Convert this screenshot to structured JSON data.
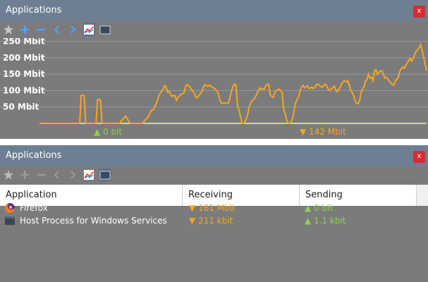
{
  "top_panel": {
    "title": "Applications",
    "close_label": "x",
    "chart_data": {
      "type": "line",
      "ylabels": [
        "250 Mbit",
        "200 Mbit",
        "150 Mbit",
        "100 Mbit",
        "50 Mbit"
      ],
      "yticks": [
        250,
        200,
        150,
        100,
        50
      ],
      "ylim": [
        0,
        260
      ],
      "grid": true,
      "series": [
        {
          "color": "#f5a623",
          "values": [
            0,
            0,
            0,
            0,
            0,
            0,
            0,
            0,
            0,
            0,
            0,
            0,
            0,
            0,
            0,
            0,
            0,
            0,
            0,
            0,
            0,
            0,
            0,
            0,
            0,
            0,
            0,
            0,
            85,
            85,
            85,
            0,
            0,
            0,
            0,
            0,
            0,
            0,
            0,
            72,
            74,
            70,
            0,
            0,
            0,
            0,
            0,
            0,
            0,
            0,
            0,
            0,
            0,
            0,
            0,
            8,
            12,
            18,
            22,
            14,
            6,
            0,
            0,
            0,
            0,
            0,
            0,
            0,
            0,
            0,
            5,
            10,
            14,
            20,
            30,
            40,
            40,
            45,
            58,
            65,
            82,
            90,
            98,
            104,
            115,
            112,
            95,
            98,
            90,
            82,
            85,
            85,
            70,
            80,
            84,
            88,
            90,
            92,
            110,
            118,
            116,
            110,
            104,
            98,
            92,
            80,
            78,
            85,
            90,
            96,
            110,
            118,
            116,
            112,
            116,
            114,
            110,
            108,
            104,
            100,
            92,
            74,
            62,
            62,
            62,
            62,
            62,
            62,
            80,
            100,
            112,
            120,
            116,
            54,
            40,
            20,
            0,
            0,
            5,
            15,
            30,
            52,
            62,
            70,
            73,
            80,
            90,
            98,
            108,
            104,
            106,
            104,
            115,
            120,
            118,
            86,
            82,
            80,
            94,
            100,
            102,
            104,
            100,
            92,
            42,
            30,
            10,
            0,
            0,
            5,
            15,
            40,
            62,
            74,
            80,
            100,
            110,
            116,
            108,
            112,
            114,
            106,
            108,
            110,
            106,
            110,
            118,
            120,
            115,
            112,
            110,
            116,
            120,
            115,
            104,
            100,
            106,
            108,
            114,
            102,
            96,
            104,
            110,
            120,
            128,
            130,
            126,
            130,
            118,
            100,
            95,
            85,
            70,
            60,
            60,
            70,
            94,
            106,
            112,
            130,
            134,
            150,
            138,
            140,
            130,
            160,
            164,
            150,
            155,
            160,
            160,
            150,
            138,
            140,
            136,
            128,
            124,
            118,
            116,
            130,
            134,
            140,
            158,
            166,
            172,
            168,
            176,
            184,
            192,
            198,
            190,
            198,
            210,
            220,
            224,
            230,
            240,
            222,
            202,
            180,
            160
          ]
        },
        {
          "color": "#c6e36f",
          "values": [
            0,
            0,
            0,
            0,
            0,
            0,
            0,
            0,
            0,
            0
          ]
        }
      ]
    },
    "receive_total": "142 Mbit",
    "send_total": "0 bit",
    "colors": {
      "receive": "#f5a623",
      "send": "#8fd14f"
    }
  },
  "bottom_panel": {
    "title": "Applications",
    "close_label": "x",
    "columns": [
      "Application",
      "Receiving",
      "Sending"
    ],
    "rows": [
      {
        "icon": "firefox-icon",
        "name": "Firefox",
        "receiving": "161 Mbit",
        "sending": "0 bit"
      },
      {
        "icon": "window-icon",
        "name": "Host Process for Windows Services",
        "receiving": "211 kbit",
        "sending": "1.1 kbit"
      }
    ]
  },
  "toolbar_icons": [
    "star-icon",
    "add-icon",
    "remove-icon",
    "back-icon",
    "forward-icon",
    "graph-icon",
    "list-icon"
  ],
  "arrows": {
    "up": "▲",
    "down": "▼"
  }
}
